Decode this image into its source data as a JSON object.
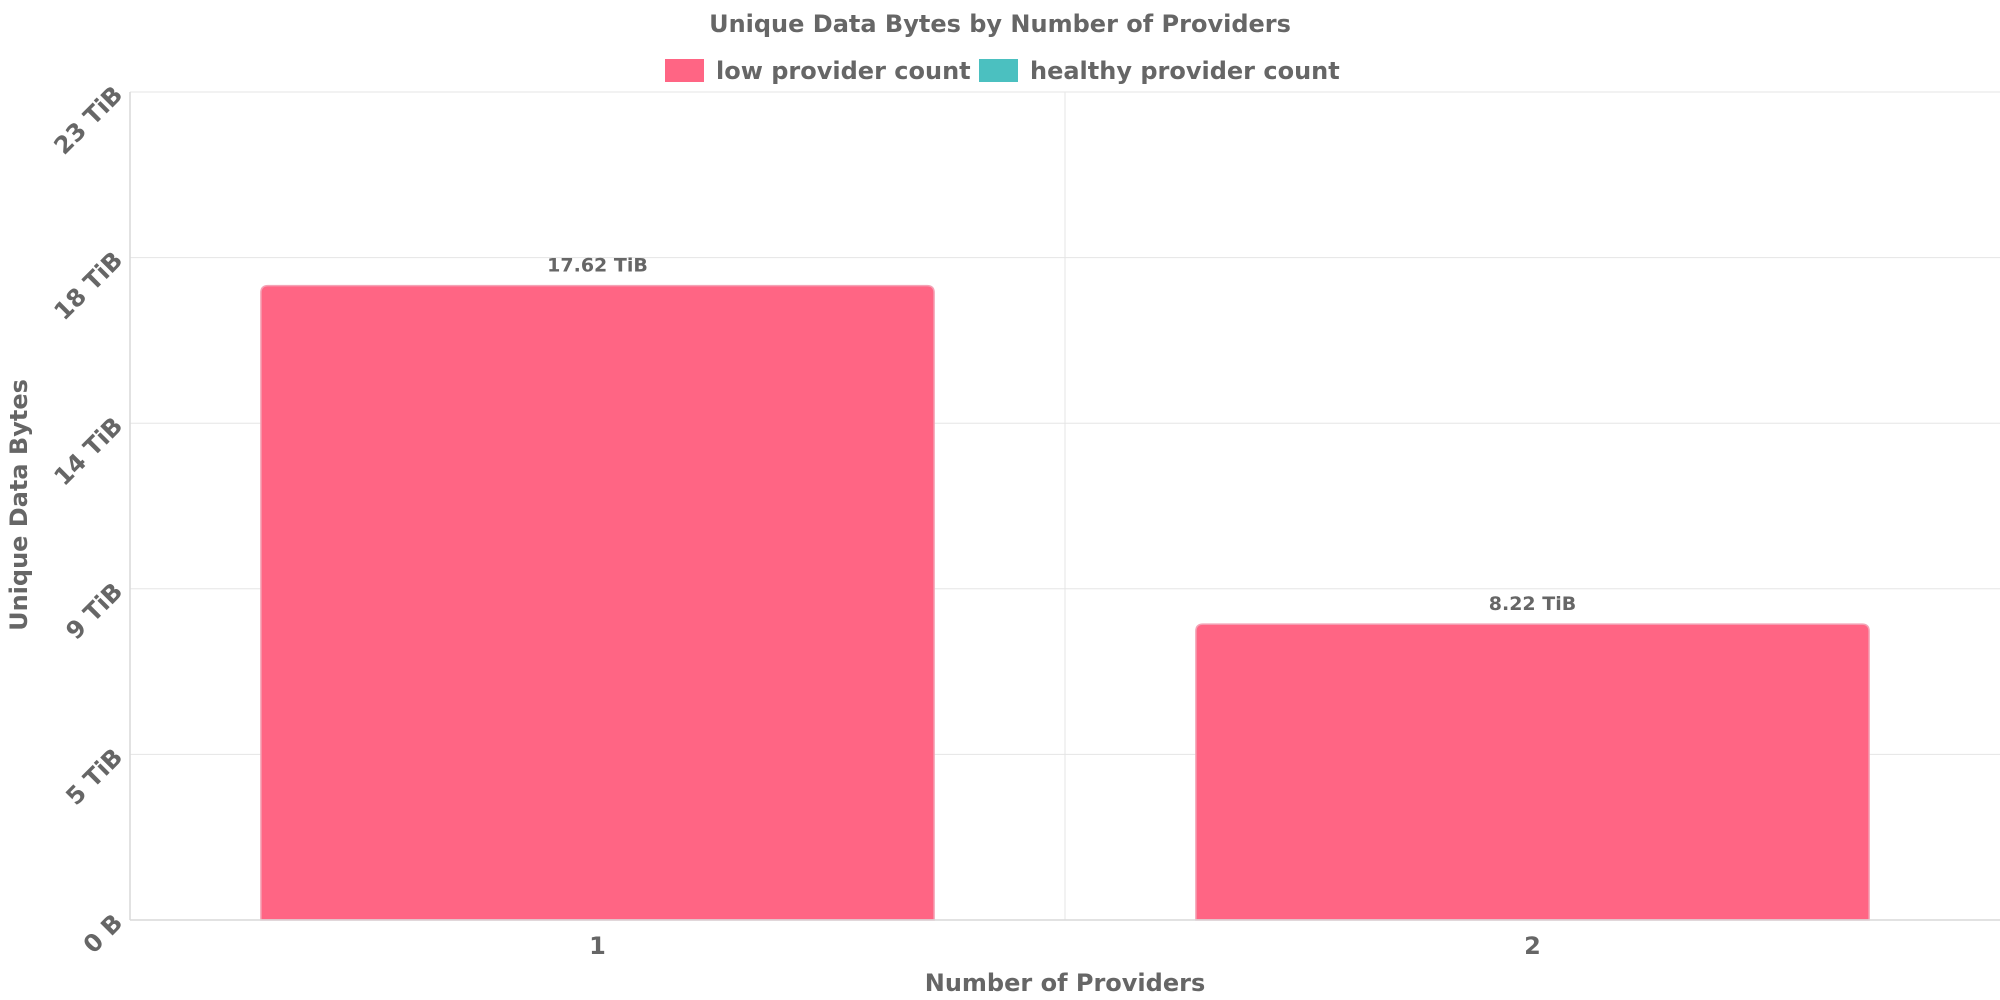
{
  "chart_data": {
    "type": "bar",
    "title": "Unique Data Bytes by Number of Providers",
    "xlabel": "Number of Providers",
    "ylabel": "Unique Data Bytes",
    "categories": [
      "1",
      "2"
    ],
    "y_ticks": [
      {
        "value": 0,
        "label": "0 B"
      },
      {
        "value": 4.6,
        "label": "5 TiB"
      },
      {
        "value": 9.2,
        "label": "9 TiB"
      },
      {
        "value": 13.8,
        "label": "14 TiB"
      },
      {
        "value": 18.4,
        "label": "18 TiB"
      },
      {
        "value": 23,
        "label": "23 TiB"
      }
    ],
    "ylim": [
      0,
      23
    ],
    "y_unit": "TiB",
    "grid": true,
    "legend_position": "top-center",
    "series": [
      {
        "name": "low provider count",
        "color": "#ff6584",
        "values": [
          17.62,
          8.22
        ],
        "labels": [
          "17.62 TiB",
          "8.22 TiB"
        ]
      },
      {
        "name": "healthy provider count",
        "color": "#4bc0c0",
        "values": [
          0,
          0
        ],
        "labels": [
          "",
          ""
        ]
      }
    ]
  }
}
